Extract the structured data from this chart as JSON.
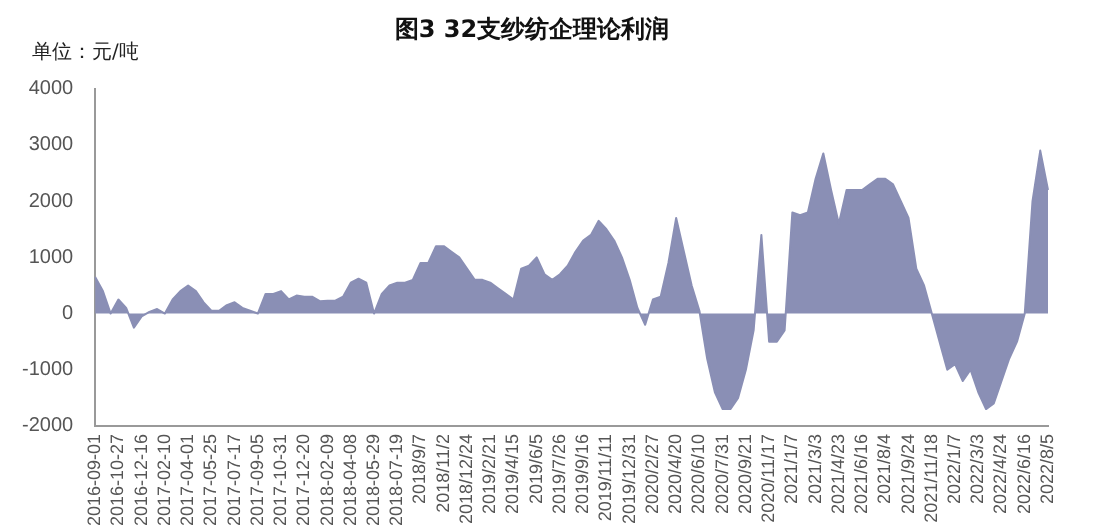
{
  "chart_data": {
    "type": "area",
    "title": "图3 32支纱纺企理论利润",
    "ylabel": "单位：元/吨",
    "categories": [
      "2016-09-01",
      null,
      null,
      "2016-10-27",
      null,
      null,
      "2016-12-16",
      null,
      null,
      "2017-02-10",
      null,
      null,
      "2017-04-01",
      null,
      null,
      "2017-05-25",
      null,
      null,
      "2017-07-17",
      null,
      null,
      "2017-09-05",
      null,
      null,
      "2017-10-31",
      null,
      null,
      "2017-12-20",
      null,
      null,
      "2018-02-09",
      null,
      null,
      "2018-04-08",
      null,
      null,
      "2018-05-29",
      null,
      null,
      "2018-07-19",
      null,
      null,
      "2018/9/7",
      null,
      null,
      "2018/11/2",
      null,
      null,
      "2018/12/24",
      null,
      null,
      "2019/2/21",
      null,
      null,
      "2019/4/15",
      null,
      null,
      "2019/6/5",
      null,
      null,
      "2019/7/26",
      null,
      null,
      "2019/9/16",
      null,
      null,
      "2019/11/11",
      null,
      null,
      "2019/12/31",
      null,
      null,
      "2020/2/27",
      null,
      null,
      "2020/4/20",
      null,
      null,
      "2020/6/10",
      null,
      null,
      "2020/7/31",
      null,
      null,
      "2020/9/21",
      null,
      null,
      "2020/11/17",
      null,
      null,
      "2021/1/7",
      null,
      null,
      "2021/3/3",
      null,
      null,
      "2021/4/23",
      null,
      null,
      "2021/6/16",
      null,
      null,
      "2021/8/4",
      null,
      null,
      "2021/9/24",
      null,
      null,
      "2021/11/18",
      null,
      null,
      "2022/1/7",
      null,
      null,
      "2022/3/3",
      null,
      null,
      "2022/4/24",
      null,
      null,
      "2022/6/16",
      null,
      null,
      "2022/8/5"
    ],
    "series": [
      {
        "color": "#8a8fb5",
        "values": [
          650,
          400,
          0,
          250,
          100,
          -250,
          -50,
          30,
          80,
          0,
          250,
          400,
          500,
          400,
          200,
          50,
          50,
          150,
          200,
          100,
          50,
          0,
          350,
          350,
          400,
          250,
          320,
          300,
          300,
          220,
          230,
          230,
          300,
          550,
          620,
          550,
          0,
          350,
          500,
          550,
          550,
          600,
          900,
          900,
          1200,
          1200,
          1100,
          1000,
          800,
          600,
          600,
          550,
          450,
          350,
          250,
          800,
          850,
          1000,
          700,
          600,
          700,
          850,
          1100,
          1300,
          1400,
          1650,
          1500,
          1300,
          1000,
          600,
          100,
          -200,
          250,
          300,
          900,
          1700,
          1100,
          500,
          50,
          -800,
          -1400,
          -1700,
          -1700,
          -1500,
          -1000,
          -300,
          1400,
          -500,
          -500,
          -300,
          1800,
          1750,
          1800,
          2400,
          2850,
          2200,
          1600,
          2200,
          2200,
          2200,
          2300,
          2400,
          2400,
          2300,
          2000,
          1700,
          800,
          500,
          0,
          -500,
          -1000,
          -900,
          -1200,
          -1000,
          -1400,
          -1700,
          -1600,
          -1200,
          -800,
          -500,
          0,
          2000,
          2900,
          2200
        ]
      }
    ],
    "ylim": [
      -2000,
      4000
    ],
    "yticks": [
      -2000,
      -1000,
      0,
      1000,
      2000,
      3000,
      4000
    ],
    "grid": false,
    "legend": false
  }
}
